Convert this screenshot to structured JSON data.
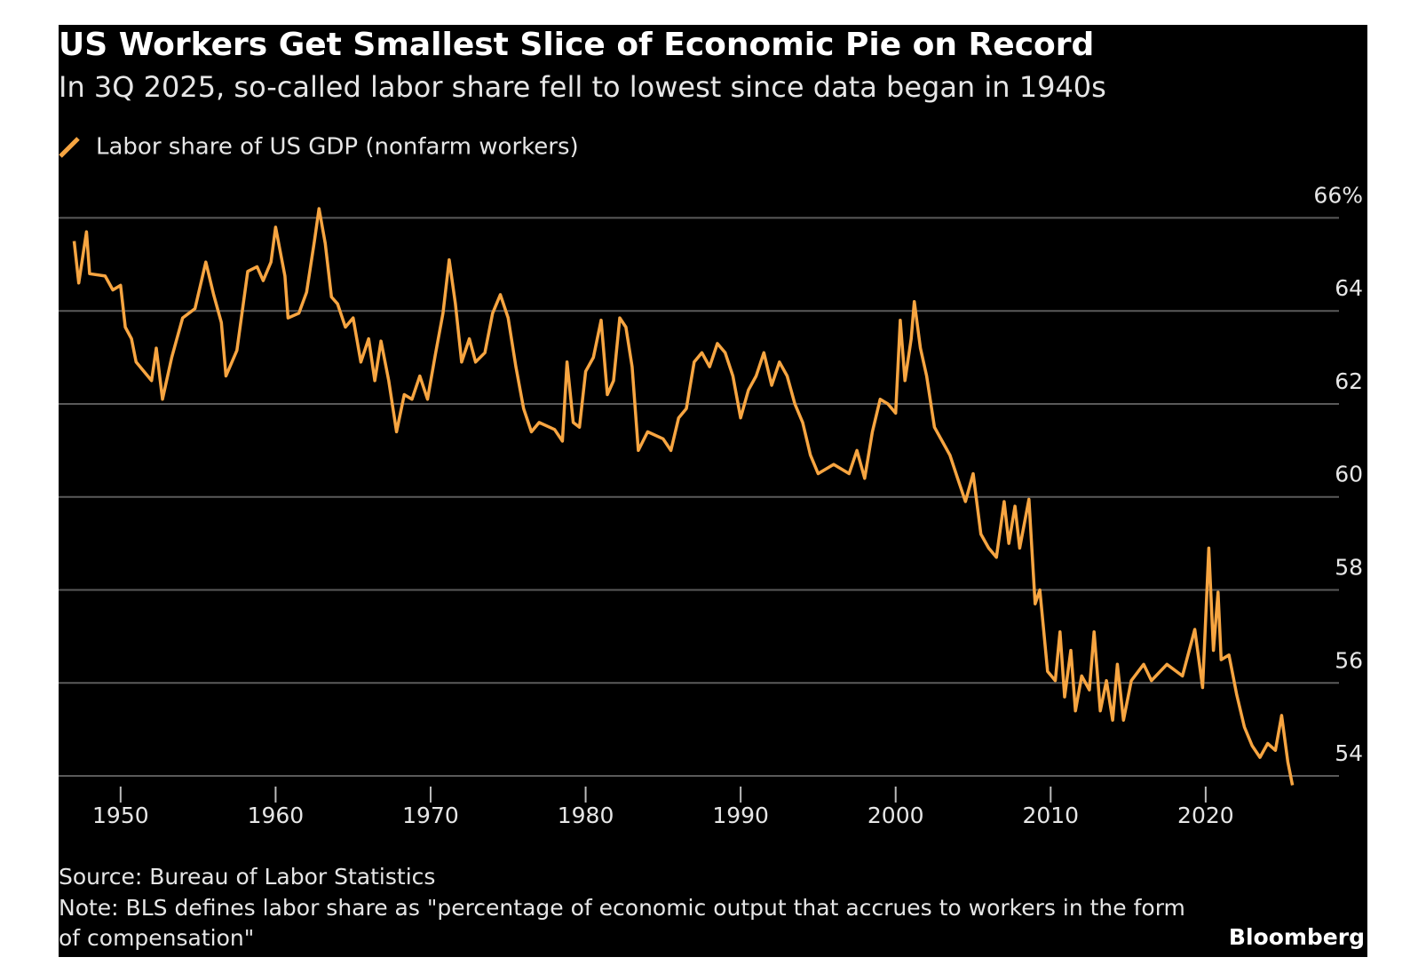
{
  "chart_data": {
    "type": "line",
    "title": "US Workers Get Smallest Slice of Economic Pie on Record",
    "subtitle": "In 3Q 2025, so-called labor share fell to lowest since data began in 1940s",
    "source": "Source: Bureau of Labor Statistics",
    "note": "Note: BLS defines labor share as \"percentage of economic output that accrues to workers in the form of compensation\"",
    "brand": "Bloomberg",
    "grid": true,
    "xlim": [
      1946,
      2028.6
    ],
    "xticks": [
      1950,
      1960,
      1970,
      1980,
      1990,
      2000,
      2010,
      2020
    ],
    "ylim": [
      53.6,
      66.6
    ],
    "yticks": [
      54,
      56,
      58,
      60,
      62,
      64,
      {
        "value": 66,
        "label": "66%"
      }
    ],
    "x": [
      1947.0,
      1947.3,
      1947.8,
      1948.0,
      1949.0,
      1949.5,
      1950.0,
      1950.3,
      1950.7,
      1951.0,
      1951.5,
      1952.0,
      1952.3,
      1952.7,
      1953.3,
      1954.0,
      1954.8,
      1955.5,
      1956.0,
      1956.5,
      1956.8,
      1957.5,
      1958.2,
      1958.8,
      1959.2,
      1959.7,
      1960.0,
      1960.6,
      1960.8,
      1961.5,
      1962.0,
      1962.5,
      1962.8,
      1963.2,
      1963.6,
      1964.0,
      1964.5,
      1965.0,
      1965.5,
      1966.0,
      1966.4,
      1966.8,
      1967.3,
      1967.8,
      1968.3,
      1968.8,
      1969.3,
      1969.8,
      1970.3,
      1970.8,
      1971.2,
      1971.6,
      1972.0,
      1972.5,
      1972.9,
      1973.5,
      1974.0,
      1974.5,
      1975.0,
      1975.5,
      1976.0,
      1976.5,
      1977.0,
      1978.0,
      1978.5,
      1978.8,
      1979.2,
      1979.6,
      1980.0,
      1980.5,
      1981.0,
      1981.4,
      1981.8,
      1982.2,
      1982.6,
      1983.0,
      1983.4,
      1984.0,
      1985.0,
      1985.5,
      1986.0,
      1986.5,
      1987.0,
      1987.5,
      1988.0,
      1988.5,
      1989.0,
      1989.5,
      1990.0,
      1990.5,
      1991.0,
      1991.5,
      1992.0,
      1992.5,
      1993.0,
      1993.5,
      1994.0,
      1994.5,
      1995.0,
      1996.0,
      1997.0,
      1997.5,
      1998.0,
      1998.5,
      1999.0,
      1999.5,
      2000.0,
      2000.3,
      2000.6,
      2001.0,
      2001.2,
      2001.6,
      2002.0,
      2002.5,
      2003.0,
      2003.5,
      2004.0,
      2004.5,
      2005.0,
      2005.5,
      2006.0,
      2006.5,
      2007.0,
      2007.3,
      2007.7,
      2008.0,
      2008.6,
      2009.0,
      2009.3,
      2009.8,
      2010.3,
      2010.6,
      2010.9,
      2011.3,
      2011.6,
      2012.0,
      2012.5,
      2012.8,
      2013.2,
      2013.6,
      2014.0,
      2014.3,
      2014.7,
      2015.2,
      2016.0,
      2016.5,
      2017.5,
      2018.5,
      2019.3,
      2019.8,
      2020.2,
      2020.5,
      2020.8,
      2021.0,
      2021.5,
      2022.0,
      2022.5,
      2023.0,
      2023.5,
      2024.0,
      2024.5,
      2024.9,
      2025.3,
      2025.6
    ],
    "series": [
      {
        "name": "Labor share of US GDP (nonfarm workers)",
        "color": "#f7a541",
        "values": [
          65.5,
          64.6,
          65.7,
          64.8,
          64.75,
          64.45,
          64.55,
          63.65,
          63.4,
          62.9,
          62.7,
          62.5,
          63.2,
          62.1,
          63.0,
          63.85,
          64.05,
          65.05,
          64.35,
          63.75,
          62.6,
          63.15,
          64.85,
          64.95,
          64.65,
          65.05,
          65.8,
          64.75,
          63.85,
          63.95,
          64.4,
          65.5,
          66.2,
          65.45,
          64.3,
          64.15,
          63.65,
          63.85,
          62.9,
          63.4,
          62.5,
          63.35,
          62.5,
          61.4,
          62.2,
          62.1,
          62.6,
          62.1,
          63.05,
          63.95,
          65.1,
          64.15,
          62.9,
          63.4,
          62.9,
          63.1,
          63.95,
          64.35,
          63.85,
          62.8,
          61.9,
          61.4,
          61.6,
          61.45,
          61.2,
          62.9,
          61.6,
          61.5,
          62.7,
          63.0,
          63.8,
          62.2,
          62.5,
          63.85,
          63.65,
          62.8,
          61.0,
          61.4,
          61.25,
          61.0,
          61.7,
          61.9,
          62.9,
          63.1,
          62.8,
          63.3,
          63.1,
          62.6,
          61.7,
          62.3,
          62.6,
          63.1,
          62.4,
          62.9,
          62.6,
          62.0,
          61.6,
          60.9,
          60.5,
          60.7,
          60.5,
          61.0,
          60.4,
          61.4,
          62.1,
          62.0,
          61.8,
          63.8,
          62.5,
          63.4,
          64.2,
          63.2,
          62.6,
          61.5,
          61.2,
          60.9,
          60.4,
          59.9,
          60.5,
          59.2,
          58.9,
          58.7,
          59.9,
          59.0,
          59.8,
          58.9,
          59.95,
          57.7,
          58.0,
          56.25,
          56.05,
          57.1,
          55.7,
          56.7,
          55.4,
          56.15,
          55.85,
          57.1,
          55.4,
          56.05,
          55.2,
          56.4,
          55.2,
          56.05,
          56.4,
          56.05,
          56.4,
          56.15,
          57.15,
          55.9,
          58.9,
          56.7,
          57.95,
          56.5,
          56.6,
          55.75,
          55.05,
          54.65,
          54.4,
          54.7,
          54.55,
          55.3,
          54.3,
          53.8
        ]
      }
    ]
  }
}
